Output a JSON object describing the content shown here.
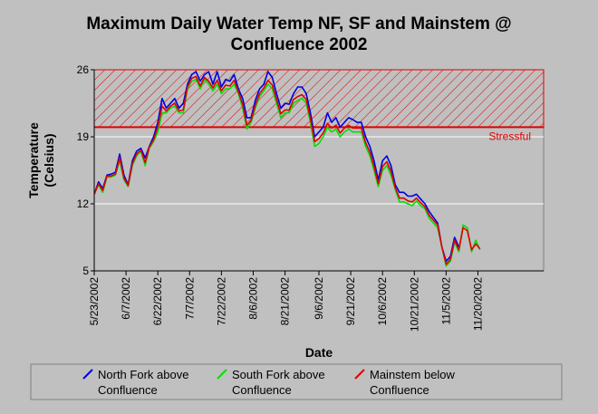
{
  "chart_data": {
    "type": "line",
    "title_lines": [
      "Maximum Daily Water Temp NF, SF and Mainstem @",
      "Confluence 2002"
    ],
    "xlabel": "Date",
    "ylabel_lines": [
      "Temperature",
      "(Celsius)"
    ],
    "ylim": [
      5,
      26
    ],
    "yticks": [
      5,
      12,
      19,
      26
    ],
    "xlim": [
      "2002-05-23",
      "2002-12-21"
    ],
    "xticks": [
      "5/23/2002",
      "6/7/2002",
      "6/22/2002",
      "7/7/2002",
      "7/22/2002",
      "8/6/2002",
      "8/21/2002",
      "9/6/2002",
      "9/21/2002",
      "10/6/2002",
      "10/21/2002",
      "11/5/2002",
      "11/20/2002"
    ],
    "grid": "horizontal",
    "legend_position": "bottom",
    "threshold": {
      "value": 20.0,
      "upper": 26,
      "label": "Stressful",
      "color": "#e00000"
    },
    "series": [
      {
        "name": "North Fork above Confluence",
        "color": "#0000e0",
        "x": [
          "2002-05-23",
          "2002-05-25",
          "2002-05-27",
          "2002-05-29",
          "2002-05-31",
          "2002-06-02",
          "2002-06-04",
          "2002-06-06",
          "2002-06-08",
          "2002-06-10",
          "2002-06-12",
          "2002-06-14",
          "2002-06-16",
          "2002-06-18",
          "2002-06-20",
          "2002-06-22",
          "2002-06-24",
          "2002-06-26",
          "2002-06-28",
          "2002-06-30",
          "2002-07-02",
          "2002-07-04",
          "2002-07-06",
          "2002-07-08",
          "2002-07-10",
          "2002-07-12",
          "2002-07-14",
          "2002-07-16",
          "2002-07-18",
          "2002-07-20",
          "2002-07-22",
          "2002-07-24",
          "2002-07-26",
          "2002-07-28",
          "2002-07-30",
          "2002-08-01",
          "2002-08-03",
          "2002-08-05",
          "2002-08-07",
          "2002-08-09",
          "2002-08-11",
          "2002-08-13",
          "2002-08-15",
          "2002-08-17",
          "2002-08-19",
          "2002-08-21",
          "2002-08-23",
          "2002-08-25",
          "2002-08-27",
          "2002-08-29",
          "2002-08-31",
          "2002-09-02",
          "2002-09-04",
          "2002-09-06",
          "2002-09-08",
          "2002-09-10",
          "2002-09-12",
          "2002-09-14",
          "2002-09-16",
          "2002-09-18",
          "2002-09-20",
          "2002-09-22",
          "2002-09-24",
          "2002-09-26",
          "2002-09-28",
          "2002-09-30",
          "2002-10-02",
          "2002-10-04",
          "2002-10-06",
          "2002-10-08",
          "2002-10-10",
          "2002-10-12",
          "2002-10-14",
          "2002-10-16",
          "2002-10-18",
          "2002-10-20",
          "2002-10-22",
          "2002-10-24",
          "2002-10-26",
          "2002-10-28",
          "2002-10-30",
          "2002-11-01",
          "2002-11-03",
          "2002-11-05",
          "2002-11-07",
          "2002-11-09",
          "2002-11-11"
        ],
        "y": [
          13.0,
          14.3,
          13.6,
          15.0,
          15.1,
          15.3,
          17.2,
          15.0,
          14.0,
          16.5,
          17.5,
          17.8,
          16.8,
          18.0,
          19.0,
          20.5,
          23.0,
          22.0,
          22.5,
          23.0,
          22.0,
          22.5,
          24.5,
          25.5,
          25.8,
          24.8,
          25.5,
          25.8,
          24.5,
          25.8,
          24.2,
          25.0,
          24.8,
          25.5,
          24.0,
          23.0,
          21.0,
          21.0,
          22.8,
          24.0,
          24.5,
          25.8,
          25.2,
          23.5,
          22.0,
          22.5,
          22.4,
          23.5,
          24.2,
          24.2,
          23.5,
          21.5,
          19.0,
          19.5,
          20.0,
          21.5,
          20.5,
          21.0,
          20.0,
          20.5,
          21.0,
          20.8,
          20.5,
          20.5,
          19.0,
          18.0,
          16.5,
          14.5,
          16.5,
          17.0,
          16.0,
          14.0,
          13.2,
          13.2,
          12.8,
          12.8,
          13.0,
          12.5,
          12.0,
          11.2,
          10.6,
          10.0,
          7.5,
          6.0,
          6.5,
          8.5,
          7.5
        ]
      },
      {
        "name": "South Fork above Confluence",
        "color": "#00e000",
        "x": [
          "2002-05-23",
          "2002-05-25",
          "2002-05-27",
          "2002-05-29",
          "2002-05-31",
          "2002-06-02",
          "2002-06-04",
          "2002-06-06",
          "2002-06-08",
          "2002-06-10",
          "2002-06-12",
          "2002-06-14",
          "2002-06-16",
          "2002-06-18",
          "2002-06-20",
          "2002-06-22",
          "2002-06-24",
          "2002-06-26",
          "2002-06-28",
          "2002-06-30",
          "2002-07-02",
          "2002-07-04",
          "2002-07-06",
          "2002-07-08",
          "2002-07-10",
          "2002-07-12",
          "2002-07-14",
          "2002-07-16",
          "2002-07-18",
          "2002-07-20",
          "2002-07-22",
          "2002-07-24",
          "2002-07-26",
          "2002-07-28",
          "2002-07-30",
          "2002-08-01",
          "2002-08-03",
          "2002-08-05",
          "2002-08-07",
          "2002-08-09",
          "2002-08-11",
          "2002-08-13",
          "2002-08-15",
          "2002-08-17",
          "2002-08-19",
          "2002-08-21",
          "2002-08-23",
          "2002-08-25",
          "2002-08-27",
          "2002-08-29",
          "2002-08-31",
          "2002-09-02",
          "2002-09-04",
          "2002-09-06",
          "2002-09-08",
          "2002-09-10",
          "2002-09-12",
          "2002-09-14",
          "2002-09-16",
          "2002-09-18",
          "2002-09-20",
          "2002-09-22",
          "2002-09-24",
          "2002-09-26",
          "2002-09-28",
          "2002-09-30",
          "2002-10-02",
          "2002-10-04",
          "2002-10-06",
          "2002-10-08",
          "2002-10-10",
          "2002-10-12",
          "2002-10-14",
          "2002-10-16",
          "2002-10-18",
          "2002-10-20",
          "2002-10-22",
          "2002-10-24",
          "2002-10-26",
          "2002-10-28",
          "2002-10-30",
          "2002-11-01",
          "2002-11-03",
          "2002-11-05",
          "2002-11-07",
          "2002-11-09",
          "2002-11-11",
          "2002-11-13",
          "2002-11-15",
          "2002-11-17",
          "2002-11-19",
          "2002-11-21"
        ],
        "y": [
          13.0,
          14.0,
          13.2,
          14.8,
          14.8,
          15.0,
          16.5,
          14.5,
          13.8,
          16.0,
          17.0,
          17.5,
          16.0,
          17.8,
          18.5,
          19.5,
          21.5,
          21.5,
          22.0,
          22.2,
          21.5,
          21.5,
          24.0,
          24.8,
          25.0,
          24.0,
          25.0,
          24.5,
          23.8,
          24.5,
          23.5,
          24.0,
          24.0,
          24.5,
          23.5,
          22.0,
          19.8,
          20.5,
          22.0,
          23.2,
          23.8,
          24.5,
          24.0,
          22.5,
          21.0,
          21.5,
          21.5,
          22.5,
          22.8,
          23.0,
          22.5,
          20.5,
          18.0,
          18.3,
          19.0,
          20.0,
          19.5,
          19.8,
          19.0,
          19.5,
          19.8,
          19.5,
          19.5,
          19.5,
          18.0,
          17.0,
          15.5,
          13.8,
          15.5,
          16.0,
          15.0,
          13.5,
          12.2,
          12.2,
          12.0,
          11.8,
          12.3,
          11.8,
          11.5,
          10.5,
          10.0,
          9.5,
          7.5,
          5.5,
          6.0,
          8.0,
          7.0,
          9.8,
          9.5,
          7.0,
          8.2,
          7.2
        ]
      },
      {
        "name": "Mainstem below Confluence",
        "color": "#e00000",
        "x": [
          "2002-05-23",
          "2002-05-25",
          "2002-05-27",
          "2002-05-29",
          "2002-05-31",
          "2002-06-02",
          "2002-06-04",
          "2002-06-06",
          "2002-06-08",
          "2002-06-10",
          "2002-06-12",
          "2002-06-14",
          "2002-06-16",
          "2002-06-18",
          "2002-06-20",
          "2002-06-22",
          "2002-06-24",
          "2002-06-26",
          "2002-06-28",
          "2002-06-30",
          "2002-07-02",
          "2002-07-04",
          "2002-07-06",
          "2002-07-08",
          "2002-07-10",
          "2002-07-12",
          "2002-07-14",
          "2002-07-16",
          "2002-07-18",
          "2002-07-20",
          "2002-07-22",
          "2002-07-24",
          "2002-07-26",
          "2002-07-28",
          "2002-07-30",
          "2002-08-01",
          "2002-08-03",
          "2002-08-05",
          "2002-08-07",
          "2002-08-09",
          "2002-08-11",
          "2002-08-13",
          "2002-08-15",
          "2002-08-17",
          "2002-08-19",
          "2002-08-21",
          "2002-08-23",
          "2002-08-25",
          "2002-08-27",
          "2002-08-29",
          "2002-08-31",
          "2002-09-02",
          "2002-09-04",
          "2002-09-06",
          "2002-09-08",
          "2002-09-10",
          "2002-09-12",
          "2002-09-14",
          "2002-09-16",
          "2002-09-18",
          "2002-09-20",
          "2002-09-22",
          "2002-09-24",
          "2002-09-26",
          "2002-09-28",
          "2002-09-30",
          "2002-10-02",
          "2002-10-04",
          "2002-10-06",
          "2002-10-08",
          "2002-10-10",
          "2002-10-12",
          "2002-10-14",
          "2002-10-16",
          "2002-10-18",
          "2002-10-20",
          "2002-10-22",
          "2002-10-24",
          "2002-10-26",
          "2002-10-28",
          "2002-10-30",
          "2002-11-01",
          "2002-11-03",
          "2002-11-05",
          "2002-11-07",
          "2002-11-09",
          "2002-11-11",
          "2002-11-13",
          "2002-11-15",
          "2002-11-17",
          "2002-11-19",
          "2002-11-21"
        ],
        "y": [
          13.0,
          14.1,
          13.4,
          14.9,
          14.9,
          15.1,
          16.8,
          14.7,
          13.9,
          16.2,
          17.2,
          17.6,
          16.3,
          17.9,
          18.7,
          20.0,
          22.2,
          21.7,
          22.2,
          22.5,
          21.7,
          21.8,
          24.2,
          25.1,
          25.3,
          24.3,
          25.2,
          24.8,
          24.1,
          24.9,
          23.8,
          24.4,
          24.3,
          24.9,
          23.7,
          22.4,
          20.2,
          20.7,
          22.3,
          23.5,
          24.1,
          24.9,
          24.4,
          22.9,
          21.4,
          21.8,
          21.8,
          22.9,
          23.2,
          23.4,
          22.9,
          20.9,
          18.5,
          18.8,
          19.4,
          20.4,
          19.9,
          20.2,
          19.4,
          19.9,
          20.2,
          19.9,
          19.9,
          19.9,
          18.4,
          17.4,
          15.9,
          14.1,
          15.9,
          16.4,
          15.4,
          13.7,
          12.6,
          12.6,
          12.3,
          12.2,
          12.6,
          12.1,
          11.7,
          10.8,
          10.3,
          9.8,
          7.5,
          5.7,
          6.2,
          8.2,
          7.2,
          9.5,
          9.2,
          7.2,
          7.8,
          7.3
        ]
      }
    ]
  }
}
